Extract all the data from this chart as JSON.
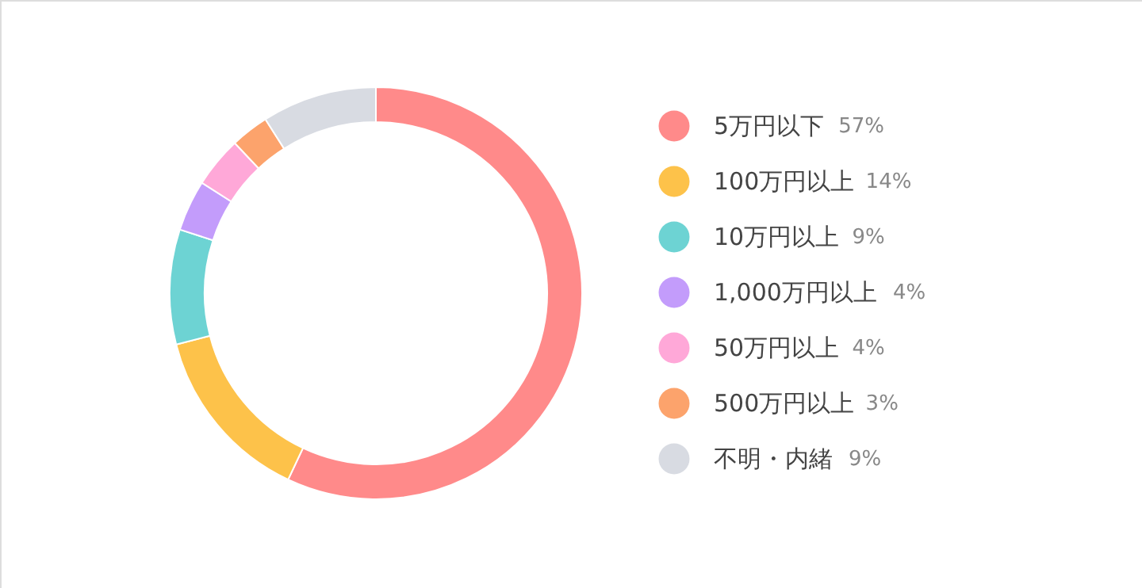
{
  "chart_data": {
    "type": "donut",
    "categories": [
      "5万円以下",
      "100万円以上",
      "10万円以上",
      "1,000万円以上",
      "50万円以上",
      "500万円以上",
      "不明・内緒"
    ],
    "values": [
      57,
      14,
      9,
      4,
      4,
      3,
      9
    ],
    "colors": [
      "#ff8a8a",
      "#fdc24a",
      "#6dd3d3",
      "#c39cfb",
      "#ffa8d8",
      "#fca36c",
      "#d8dbe2"
    ],
    "value_labels": [
      "57%",
      "14%",
      "9%",
      "4%",
      "4%",
      "3%",
      "9%"
    ],
    "legend": "right"
  }
}
